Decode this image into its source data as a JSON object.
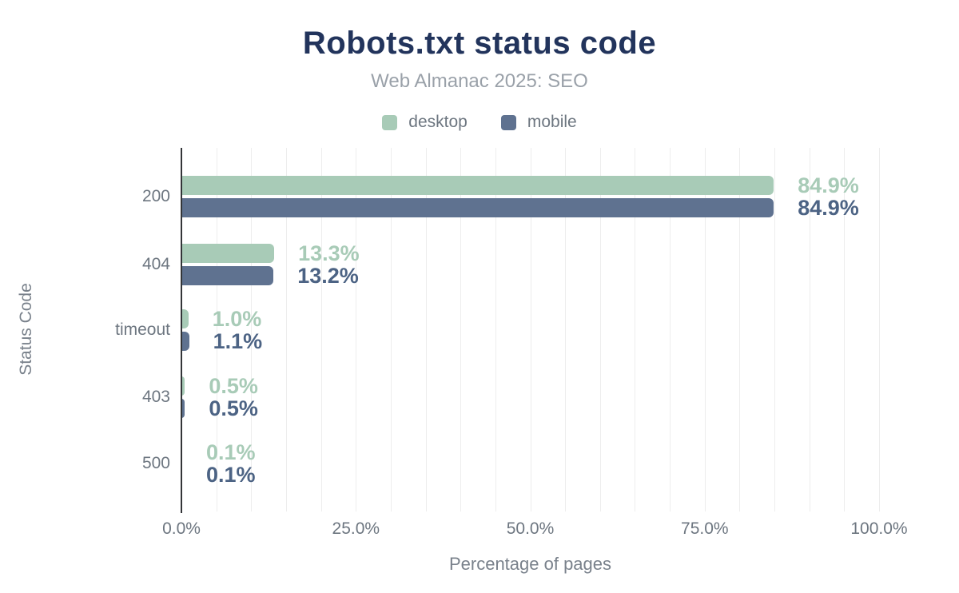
{
  "chart_data": {
    "type": "bar",
    "orientation": "horizontal",
    "title": "Robots.txt status code",
    "subtitle": "Web Almanac 2025: SEO",
    "xlabel": "Percentage of pages",
    "ylabel": "Status Code",
    "xlim": [
      0,
      100
    ],
    "xticks": [
      {
        "value": 0,
        "label": "0.0%"
      },
      {
        "value": 25,
        "label": "25.0%"
      },
      {
        "value": 50,
        "label": "50.0%"
      },
      {
        "value": 75,
        "label": "75.0%"
      },
      {
        "value": 100,
        "label": "100.0%"
      }
    ],
    "grid": {
      "axis": "x",
      "minor_step_pct": 5,
      "color": "#ededed"
    },
    "legend_position": "top",
    "categories": [
      "200",
      "404",
      "timeout",
      "403",
      "500"
    ],
    "series": [
      {
        "name": "desktop",
        "color": "#a8cbb7",
        "label_color": "#a8cbb7",
        "values": [
          84.9,
          13.3,
          1.0,
          0.5,
          0.1
        ],
        "labels": [
          "84.9%",
          "13.3%",
          "1.0%",
          "0.5%",
          "0.1%"
        ]
      },
      {
        "name": "mobile",
        "color": "#5f7290",
        "label_color": "#4c6384",
        "values": [
          84.9,
          13.2,
          1.1,
          0.5,
          0.1
        ],
        "labels": [
          "84.9%",
          "13.2%",
          "1.1%",
          "0.5%",
          "0.1%"
        ]
      }
    ],
    "colors": {
      "title": "#22345c",
      "subtitle": "#9aa1a9",
      "axis_line": "#333538",
      "tick_text": "#6d7680"
    }
  }
}
